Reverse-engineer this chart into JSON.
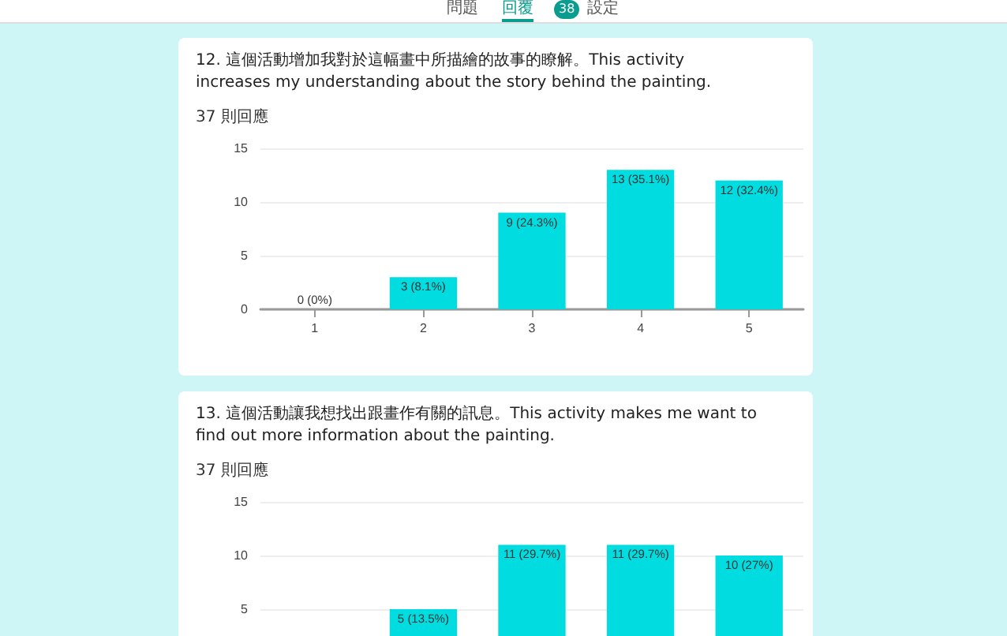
{
  "chart_data": [
    {
      "type": "bar",
      "title": "12. 這個活動增加我對於這幅畫中所描繪的故事的瞭解。This activity increases my understanding about the story behind the painting.",
      "subtitle": "37 則回應",
      "annotations": [
        "問題",
        "回覆",
        "38",
        "設定"
      ],
      "categories": [
        "1",
        "2",
        "3",
        "4",
        "5"
      ],
      "values": [
        0,
        3,
        9,
        13,
        12
      ],
      "value_labels": [
        "0 (0%)",
        "3 (8.1%)",
        "9 (24.3%)",
        "13 (35.1%)",
        "12 (32.4%)"
      ],
      "color": "#00dcdf",
      "ylim": [
        0,
        15
      ],
      "yticks": [
        0,
        5,
        10,
        15
      ],
      "grid": "y"
    },
    {
      "type": "bar",
      "title": "13. 這個活動讓我想找出跟畫作有關的訊息。This activity makes me want to find out more information about the painting.",
      "subtitle": "37 則回應",
      "categories": [
        null,
        null,
        null,
        null,
        null
      ],
      "values": [
        null,
        5,
        11,
        11,
        10
      ],
      "value_labels": [
        null,
        "5 (13.5%)",
        "11 (29.7%)",
        "11 (29.7%)",
        "10 (27%)"
      ],
      "color": "#00dcdf",
      "ylim": [
        0,
        15
      ],
      "yticks": [
        5,
        10,
        15
      ],
      "grid": "y"
    }
  ]
}
